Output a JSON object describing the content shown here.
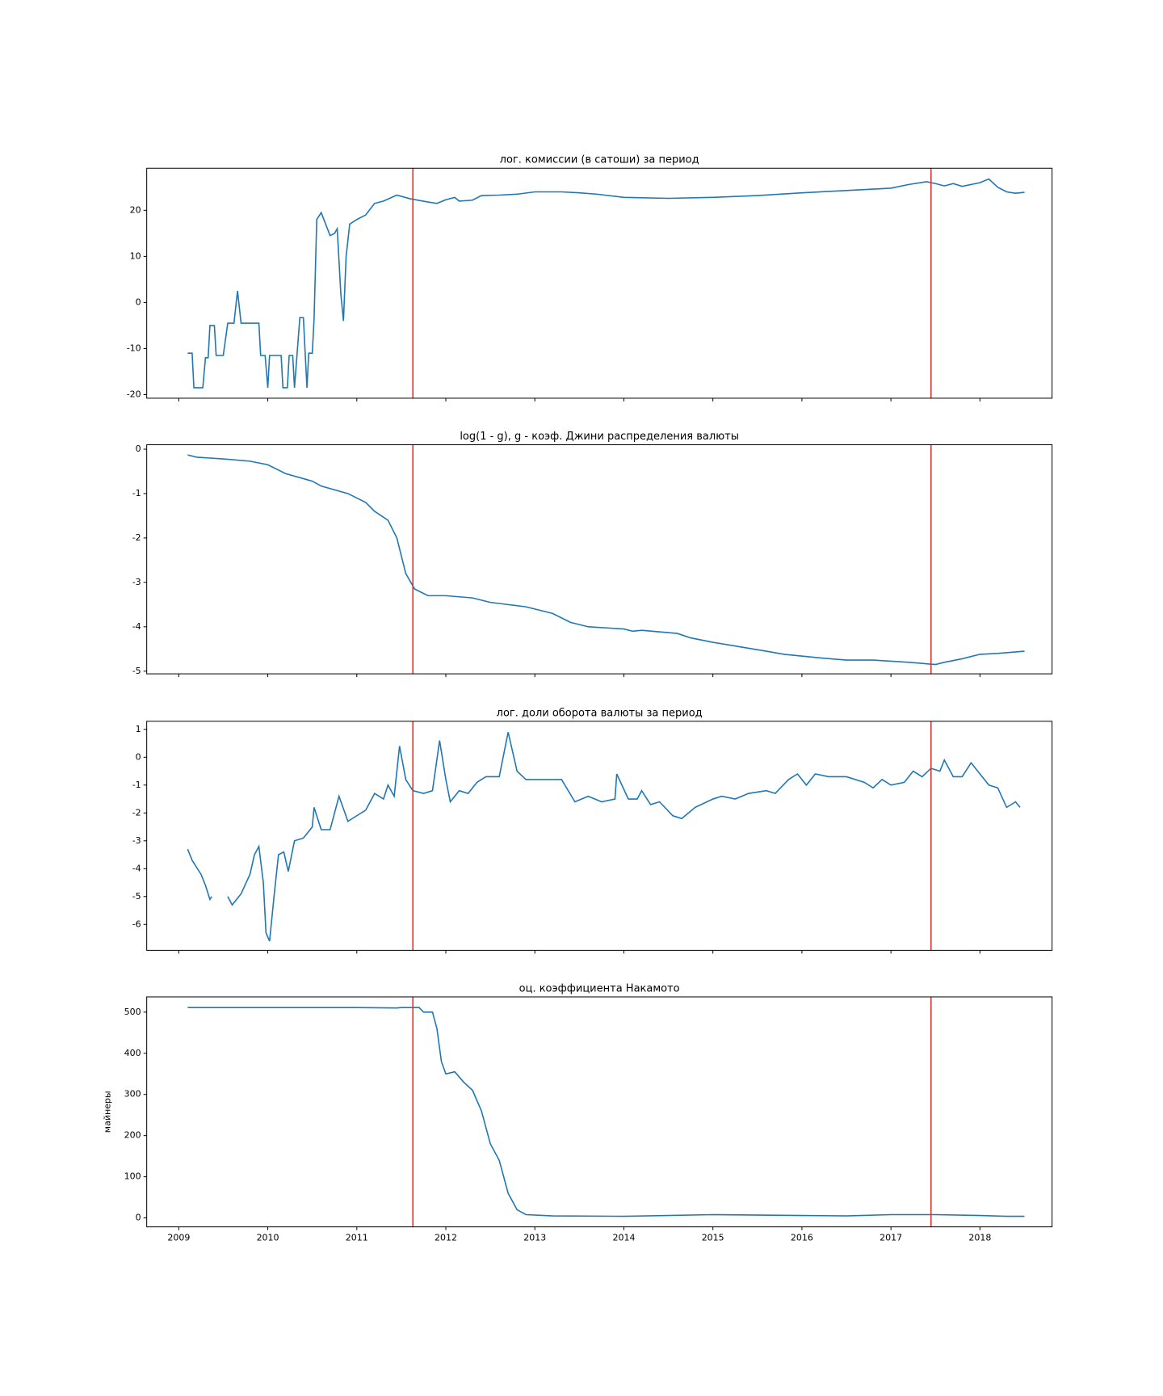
{
  "chart_data": [
    {
      "type": "line",
      "title": "лог. комиссии (в сатоши) за период",
      "x": [
        2009.1,
        2009.15,
        2009.17,
        2009.27,
        2009.3,
        2009.33,
        2009.35,
        2009.4,
        2009.42,
        2009.5,
        2009.55,
        2009.62,
        2009.66,
        2009.7,
        2009.9,
        2009.92,
        2009.97,
        2010.0,
        2010.02,
        2010.15,
        2010.17,
        2010.22,
        2010.24,
        2010.28,
        2010.3,
        2010.36,
        2010.4,
        2010.42,
        2010.44,
        2010.46,
        2010.5,
        2010.52,
        2010.55,
        2010.6,
        2010.65,
        2010.7,
        2010.75,
        2010.78,
        2010.82,
        2010.85,
        2010.88,
        2010.92,
        2011.0,
        2011.1,
        2011.2,
        2011.3,
        2011.45,
        2011.6,
        2011.8,
        2011.9,
        2012.0,
        2012.1,
        2012.15,
        2012.3,
        2012.4,
        2012.6,
        2012.8,
        2013.0,
        2013.3,
        2013.5,
        2013.7,
        2014.0,
        2014.5,
        2015.0,
        2015.5,
        2016.0,
        2016.5,
        2017.0,
        2017.2,
        2017.4,
        2017.5,
        2017.6,
        2017.7,
        2017.8,
        2018.0,
        2018.1,
        2018.2,
        2018.3,
        2018.4,
        2018.5
      ],
      "series": [
        {
          "color": "#1f77b4",
          "values": [
            -11,
            -11,
            -18.5,
            -18.5,
            -12,
            -12,
            -5,
            -5,
            -11.5,
            -11.5,
            -4.5,
            -4.5,
            2.5,
            -4.5,
            -4.5,
            -11.5,
            -11.5,
            -18.5,
            -11.5,
            -11.5,
            -18.5,
            -18.5,
            -11.5,
            -11.5,
            -18.5,
            -3.3,
            -3.3,
            -11,
            -18.5,
            -11,
            -11,
            -3.5,
            18,
            19.5,
            17,
            14.5,
            15,
            16,
            2,
            -4,
            10,
            17,
            18,
            19,
            21.5,
            22,
            23.3,
            22.5,
            21.8,
            21.5,
            22.3,
            22.8,
            22,
            22.2,
            23.2,
            23.3,
            23.5,
            24,
            24,
            23.8,
            23.5,
            22.8,
            22.6,
            22.8,
            23.2,
            23.8,
            24.3,
            24.8,
            25.6,
            26.2,
            25.8,
            25.3,
            25.8,
            25.2,
            26,
            26.8,
            25,
            24,
            23.7,
            23.9
          ]
        }
      ],
      "xlim": [
        2008.64,
        2018.81
      ],
      "xticks": [
        2009,
        2010,
        2011,
        2012,
        2013,
        2014,
        2015,
        2016,
        2017,
        2018
      ],
      "ylim": [
        -20.78,
        29.13
      ],
      "yticks": [
        -20,
        -10,
        0,
        10,
        20
      ],
      "vlines": [
        2011.63,
        2017.45
      ],
      "vline_color": "#e8312a"
    },
    {
      "type": "line",
      "title": "log(1 - g), g - коэф. Джини распределения валюты",
      "x": [
        2009.1,
        2009.2,
        2009.5,
        2009.8,
        2010.0,
        2010.2,
        2010.5,
        2010.6,
        2010.9,
        2011.1,
        2011.2,
        2011.35,
        2011.45,
        2011.55,
        2011.65,
        2011.8,
        2012.0,
        2012.3,
        2012.5,
        2012.7,
        2012.9,
        2013.2,
        2013.4,
        2013.6,
        2014.0,
        2014.1,
        2014.2,
        2014.6,
        2014.75,
        2015.0,
        2015.3,
        2015.6,
        2015.8,
        2016.2,
        2016.5,
        2016.8,
        2017.2,
        2017.5,
        2017.6,
        2017.8,
        2018.0,
        2018.2,
        2018.5
      ],
      "series": [
        {
          "color": "#1f77b4",
          "values": [
            -0.13,
            -0.18,
            -0.22,
            -0.27,
            -0.35,
            -0.55,
            -0.72,
            -0.83,
            -1.0,
            -1.2,
            -1.4,
            -1.6,
            -2.0,
            -2.8,
            -3.15,
            -3.3,
            -3.3,
            -3.35,
            -3.45,
            -3.5,
            -3.55,
            -3.7,
            -3.9,
            -4.0,
            -4.05,
            -4.1,
            -4.08,
            -4.15,
            -4.25,
            -4.35,
            -4.45,
            -4.55,
            -4.62,
            -4.7,
            -4.75,
            -4.75,
            -4.8,
            -4.85,
            -4.8,
            -4.72,
            -4.62,
            -4.6,
            -4.55
          ]
        }
      ],
      "xlim": [
        2008.64,
        2018.81
      ],
      "xticks": [
        2009,
        2010,
        2011,
        2012,
        2013,
        2014,
        2015,
        2016,
        2017,
        2018
      ],
      "ylim": [
        -5.06,
        0.1
      ],
      "yticks": [
        -5,
        -4,
        -3,
        -2,
        -1,
        0
      ],
      "vlines": [
        2011.63,
        2017.45
      ],
      "vline_color": "#e8312a"
    },
    {
      "type": "line",
      "title": "лог. доли оборота валюты за период",
      "x": [
        2009.1,
        2009.15,
        2009.25,
        2009.3,
        2009.35,
        2009.37,
        2009.45,
        2009.55,
        2009.6,
        2009.7,
        2009.8,
        2009.85,
        2009.9,
        2009.95,
        2009.98,
        2010.02,
        2010.07,
        2010.12,
        2010.18,
        2010.23,
        2010.3,
        2010.4,
        2010.5,
        2010.52,
        2010.6,
        2010.7,
        2010.8,
        2010.9,
        2011.0,
        2011.1,
        2011.2,
        2011.3,
        2011.35,
        2011.42,
        2011.48,
        2011.55,
        2011.63,
        2011.75,
        2011.85,
        2011.93,
        2012.0,
        2012.05,
        2012.15,
        2012.25,
        2012.35,
        2012.45,
        2012.6,
        2012.7,
        2012.8,
        2012.9,
        2013.1,
        2013.3,
        2013.45,
        2013.6,
        2013.75,
        2013.9,
        2013.92,
        2014.05,
        2014.15,
        2014.2,
        2014.3,
        2014.4,
        2014.55,
        2014.65,
        2014.8,
        2015.0,
        2015.1,
        2015.25,
        2015.4,
        2015.6,
        2015.7,
        2015.85,
        2015.95,
        2016.05,
        2016.15,
        2016.3,
        2016.5,
        2016.7,
        2016.8,
        2016.9,
        2017.0,
        2017.15,
        2017.25,
        2017.35,
        2017.45,
        2017.55,
        2017.6,
        2017.7,
        2017.8,
        2017.9,
        2018.0,
        2018.1,
        2018.2,
        2018.3,
        2018.4,
        2018.45
      ],
      "series": [
        {
          "color": "#1f77b4",
          "values": [
            -3.3,
            -3.7,
            -4.2,
            -4.6,
            -5.1,
            -5.0,
            null,
            -5.0,
            -5.3,
            -4.9,
            -4.2,
            -3.5,
            -3.2,
            -4.5,
            -6.3,
            -6.6,
            -5.0,
            -3.5,
            -3.4,
            -4.1,
            -3.0,
            -2.9,
            -2.5,
            -1.8,
            -2.6,
            -2.6,
            -1.4,
            -2.3,
            -2.1,
            -1.9,
            -1.3,
            -1.5,
            -1.0,
            -1.4,
            0.4,
            -0.8,
            -1.2,
            -1.3,
            -1.2,
            0.6,
            -0.8,
            -1.6,
            -1.2,
            -1.3,
            -0.9,
            -0.7,
            -0.7,
            0.9,
            -0.5,
            -0.8,
            -0.8,
            -0.8,
            -1.6,
            -1.4,
            -1.6,
            -1.5,
            -0.6,
            -1.5,
            -1.5,
            -1.2,
            -1.7,
            -1.6,
            -2.1,
            -2.2,
            -1.8,
            -1.5,
            -1.4,
            -1.5,
            -1.3,
            -1.2,
            -1.3,
            -0.8,
            -0.6,
            -1.0,
            -0.6,
            -0.7,
            -0.7,
            -0.9,
            -1.1,
            -0.8,
            -1.0,
            -0.9,
            -0.5,
            -0.7,
            -0.4,
            -0.5,
            -0.1,
            -0.7,
            -0.7,
            -0.2,
            -0.6,
            -1.0,
            -1.1,
            -1.8,
            -1.6,
            -1.8
          ]
        }
      ],
      "xlim": [
        2008.64,
        2018.81
      ],
      "xticks": [
        2009,
        2010,
        2011,
        2012,
        2013,
        2014,
        2015,
        2016,
        2017,
        2018
      ],
      "ylim": [
        -6.93,
        1.29
      ],
      "yticks": [
        -6,
        -5,
        -4,
        -3,
        -2,
        -1,
        0,
        1
      ],
      "vlines": [
        2011.63,
        2017.45
      ],
      "vline_color": "#e8312a"
    },
    {
      "type": "line",
      "title": "оц. коэффициента Накамото",
      "ylabel": "майнеры",
      "x": [
        2009.1,
        2011.0,
        2011.45,
        2011.5,
        2011.7,
        2011.75,
        2011.85,
        2011.9,
        2011.95,
        2012.0,
        2012.1,
        2012.2,
        2012.3,
        2012.4,
        2012.5,
        2012.6,
        2012.7,
        2012.8,
        2012.9,
        2013.2,
        2014.0,
        2015.0,
        2016.0,
        2016.5,
        2017.0,
        2017.5,
        2018.0,
        2018.3,
        2018.5
      ],
      "series": [
        {
          "color": "#1f77b4",
          "values": [
            511,
            511,
            510,
            511,
            511,
            500,
            500,
            460,
            380,
            350,
            355,
            330,
            310,
            260,
            180,
            140,
            60,
            20,
            8,
            5,
            4,
            8,
            6,
            5,
            8,
            8,
            6,
            4,
            4
          ]
        }
      ],
      "xlim": [
        2008.64,
        2018.81
      ],
      "xticks": [
        2009,
        2010,
        2011,
        2012,
        2013,
        2014,
        2015,
        2016,
        2017,
        2018
      ],
      "xtick_labels": true,
      "ylim": [
        -21.7,
        537
      ],
      "yticks": [
        0,
        100,
        200,
        300,
        400,
        500
      ],
      "vlines": [
        2011.63,
        2017.45
      ],
      "vline_color": "#e8312a"
    }
  ]
}
